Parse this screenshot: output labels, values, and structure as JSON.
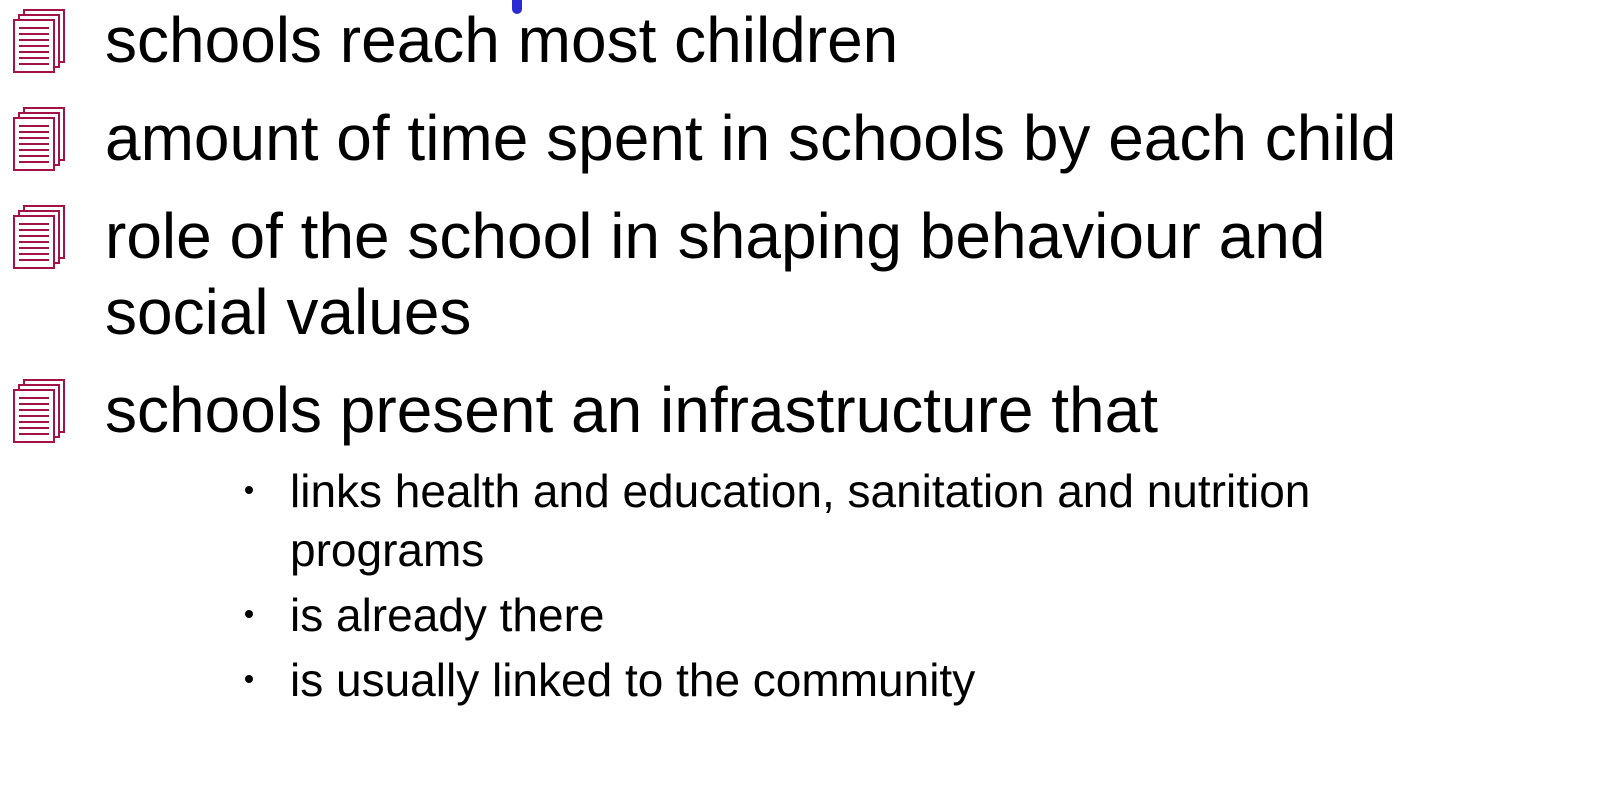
{
  "items": [
    {
      "text": "schools reach most children"
    },
    {
      "text": "amount of time spent in schools by each child"
    },
    {
      "text": "role of the school in shaping behaviour and social values"
    },
    {
      "text": "schools present an infrastructure that",
      "subitems": [
        "links health and education, sanitation and nutrition programs",
        "is already there",
        "is usually linked to the community"
      ]
    }
  ]
}
